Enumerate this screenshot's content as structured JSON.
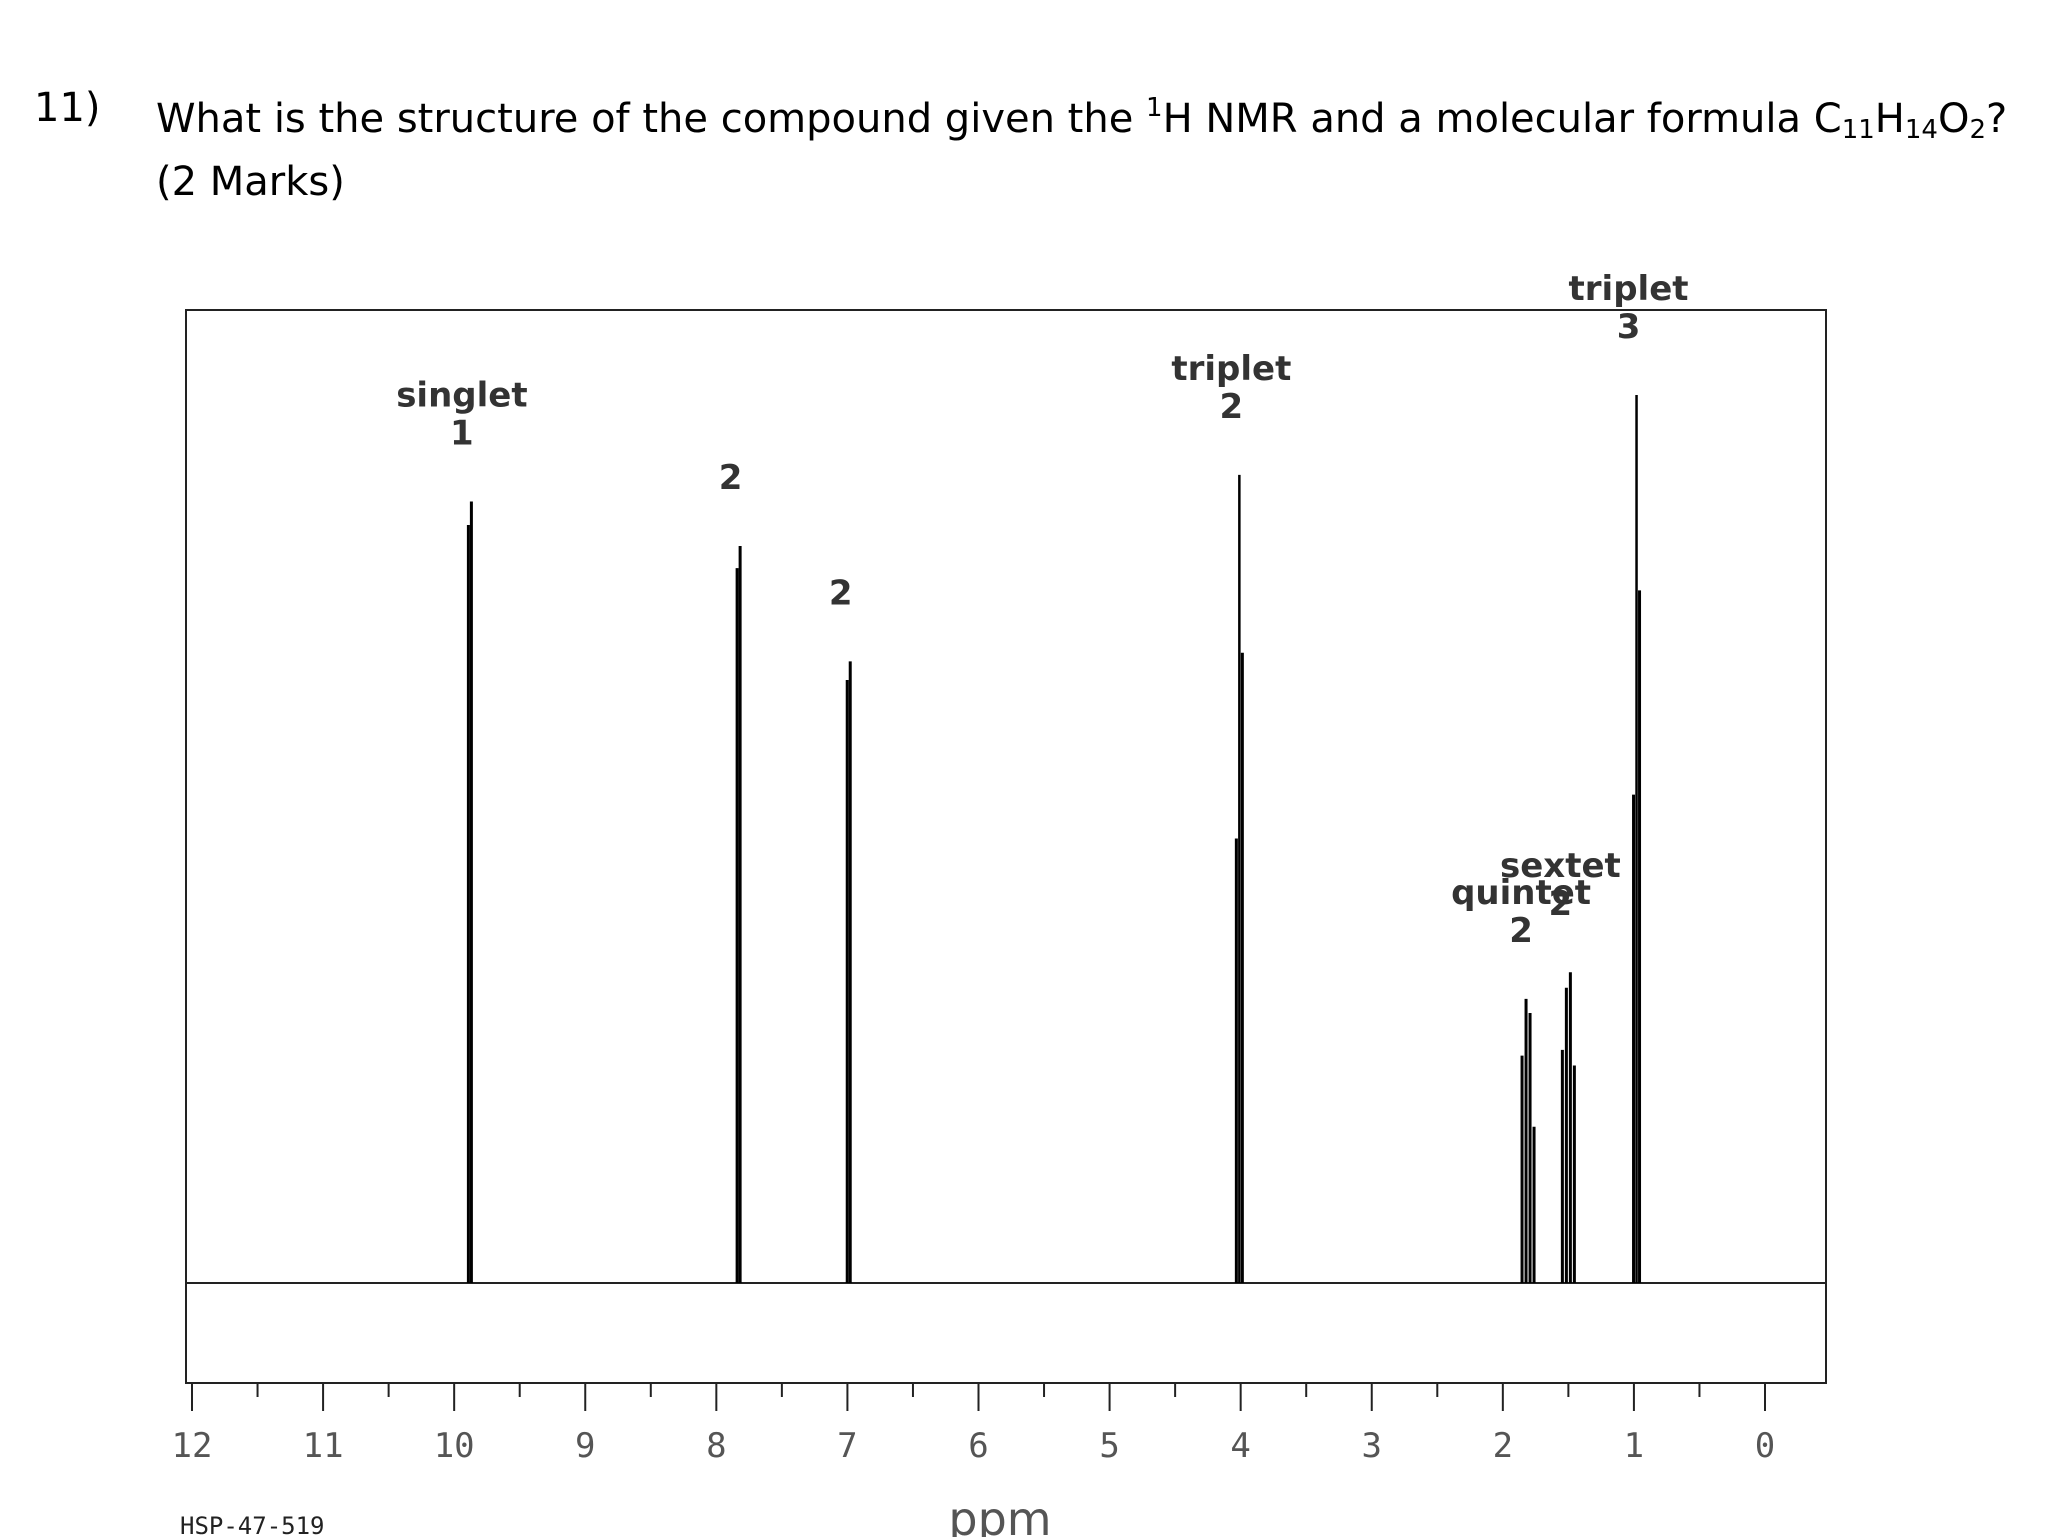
{
  "question": {
    "number": "11)",
    "text_before": "What is the structure of the compound given the ",
    "nucleus_sup": "1",
    "nucleus": "H NMR and a molecular formula C",
    "c_sub": "11",
    "h": "H",
    "h_sub": "14",
    "o": "O",
    "o_sub": "2",
    "text_after": "? (2 Marks)"
  },
  "chart_data": {
    "type": "line",
    "xlabel": "ppm",
    "xlim": [
      12,
      0
    ],
    "x_reversed": true,
    "x_ticks": [
      "12",
      "11",
      "10",
      "9",
      "8",
      "7",
      "6",
      "5",
      "4",
      "3",
      "2",
      "1",
      "0"
    ],
    "ylim": [
      0,
      1
    ],
    "grid": false,
    "footer": "HSP-47-519",
    "series": [
      {
        "peaks": [
          {
            "ppm": 9.88,
            "height": 0.88,
            "multiplicity": "singlet",
            "integration": "1"
          },
          {
            "ppm": 7.83,
            "height": 0.83,
            "multiplicity": "",
            "integration": "2"
          },
          {
            "ppm": 6.99,
            "height": 0.7,
            "multiplicity": "",
            "integration": "2"
          },
          {
            "ppm": 4.01,
            "height": 0.91,
            "multiplicity": "triplet",
            "integration": "2"
          },
          {
            "ppm": 1.8,
            "height": 0.32,
            "multiplicity": "quintet",
            "integration": "2"
          },
          {
            "ppm": 1.5,
            "height": 0.35,
            "multiplicity": "sextet",
            "integration": "2"
          },
          {
            "ppm": 0.98,
            "height": 1.0,
            "multiplicity": "triplet",
            "integration": "3"
          }
        ]
      }
    ]
  }
}
